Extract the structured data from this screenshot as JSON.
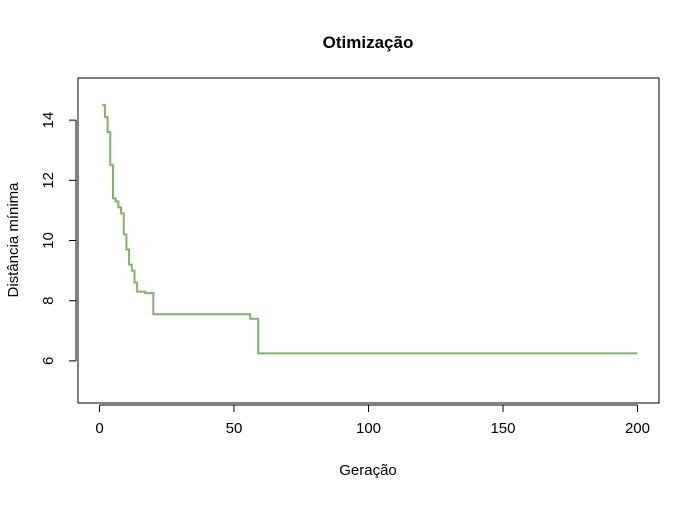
{
  "chart_data": {
    "type": "line",
    "title": "Otimização",
    "xlabel": "Geração",
    "ylabel": "Distância mínima",
    "xlim": [
      -8,
      208
    ],
    "ylim": [
      4.6,
      15.4
    ],
    "x_ticks": [
      0,
      50,
      100,
      150,
      200
    ],
    "y_ticks": [
      6,
      8,
      10,
      12,
      14
    ],
    "grid": false,
    "step": true,
    "series_color": "#7fb26a",
    "series": [
      {
        "x": [
          1,
          2,
          3,
          4,
          5,
          6,
          7,
          8,
          9,
          10,
          11,
          12,
          13,
          14,
          15,
          16,
          17,
          18,
          19,
          20,
          21,
          55,
          56,
          57,
          58,
          59,
          60,
          200
        ],
        "y": [
          14.5,
          14.1,
          13.6,
          12.5,
          11.4,
          11.3,
          11.1,
          10.9,
          10.2,
          9.7,
          9.2,
          9.0,
          8.6,
          8.3,
          8.3,
          8.3,
          8.25,
          8.25,
          8.25,
          7.55,
          7.55,
          7.55,
          7.4,
          7.4,
          7.4,
          6.25,
          6.25,
          6.25
        ]
      }
    ]
  }
}
